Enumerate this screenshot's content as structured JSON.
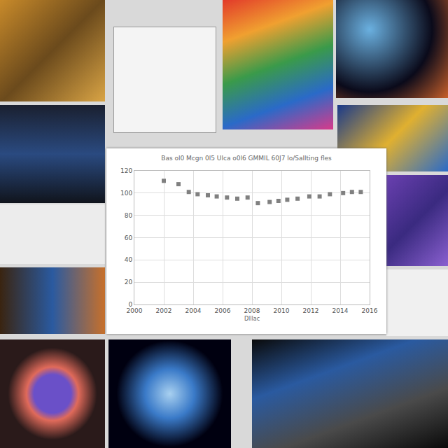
{
  "chart_data": {
    "type": "scatter",
    "title": "Bas ol0 Mcgn 0l5 Ulca o0l6 GMMIL 60J7 lo/Sallting fles",
    "x_label": "Dlllac",
    "x": [
      2002,
      2003,
      2003.7,
      2004.3,
      2005,
      2005.6,
      2006.3,
      2007,
      2007.7,
      2008.4,
      2009.2,
      2009.8,
      2010.4,
      2011.1,
      2011.9,
      2012.6,
      2013.3,
      2014.2,
      2014.8,
      2015.4
    ],
    "values": [
      111,
      108,
      101,
      99,
      98,
      97,
      96,
      95,
      96,
      91,
      92,
      93,
      94,
      95,
      97,
      97,
      99,
      100,
      101,
      101
    ],
    "color": "#808080",
    "marker": "square",
    "xlim": [
      2000,
      2016
    ],
    "xticks": [
      2000,
      2002,
      2004,
      2006,
      2008,
      2010,
      2012,
      2014,
      2016
    ],
    "ylim": [
      0,
      120
    ],
    "yticks": [
      0,
      20,
      40,
      60,
      80,
      100,
      120
    ],
    "grid": true
  }
}
